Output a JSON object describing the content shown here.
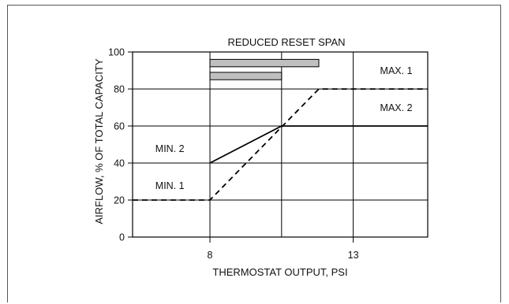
{
  "chart_data": {
    "type": "line",
    "title": "REDUCED RESET SPAN",
    "xlabel": "THERMOSTAT OUTPUT, PSI",
    "ylabel": "AIRFLOW, % OF TOTAL CAPACITY",
    "xlim": [
      5.3,
      15.6
    ],
    "ylim": [
      0,
      100
    ],
    "xticks": [
      8,
      13
    ],
    "yticks": [
      0,
      20,
      40,
      60,
      80,
      100
    ],
    "grid": true,
    "series": [
      {
        "style": "dashed",
        "points": [
          [
            5.3,
            20
          ],
          [
            8,
            20
          ],
          [
            11.8,
            80
          ],
          [
            15.6,
            80
          ]
        ]
      },
      {
        "style": "solid",
        "points": [
          [
            8,
            40
          ],
          [
            10.5,
            60
          ],
          [
            15.6,
            60
          ]
        ]
      }
    ],
    "span_bars": [
      {
        "x": [
          8,
          11.8
        ],
        "y": [
          92,
          96
        ]
      },
      {
        "x": [
          8,
          10.5
        ],
        "y": [
          85,
          89
        ]
      }
    ],
    "annotations": [
      {
        "text": "MIN. 2",
        "x": 6.6,
        "y": 46
      },
      {
        "text": "MIN. 1",
        "x": 6.6,
        "y": 26
      },
      {
        "text": "MAX. 1",
        "x": 14.5,
        "y": 88
      },
      {
        "text": "MAX. 2",
        "x": 14.5,
        "y": 68
      }
    ],
    "colors": {
      "line": "#000000",
      "grid": "#000000",
      "bar_fill": "#bfbfbf"
    }
  }
}
